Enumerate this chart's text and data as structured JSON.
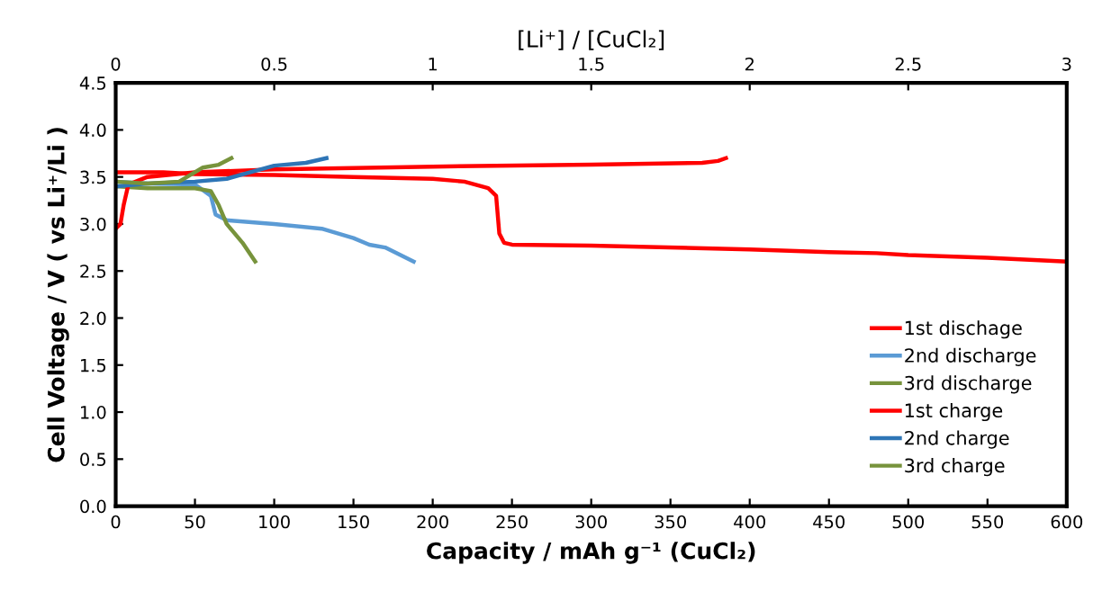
{
  "chart_data": {
    "type": "line",
    "xlabel": "Capacity / mAh g⁻¹ (CuCl₂)",
    "ylabel": "Cell Voltage / V ( vs Li⁺/Li )",
    "x2label": "[Li⁺] / [CuCl₂]",
    "xlim": [
      0,
      600
    ],
    "xticks": [
      0,
      50,
      100,
      150,
      200,
      250,
      300,
      350,
      400,
      450,
      500,
      550,
      600
    ],
    "ylim": [
      0,
      4.5
    ],
    "yticks": [
      {
        "value": 0,
        "label": "0.0"
      },
      {
        "value": 0.5,
        "label": "0.5"
      },
      {
        "value": 1,
        "label": "1.0"
      },
      {
        "value": 1.5,
        "label": "1.5"
      },
      {
        "value": 2,
        "label": "2.0"
      },
      {
        "value": 2.5,
        "label": "2.5"
      },
      {
        "value": 3,
        "label": "3.0"
      },
      {
        "value": 3.5,
        "label": "3.5"
      },
      {
        "value": 4,
        "label": "4.0"
      },
      {
        "value": 4.5,
        "label": "4.5"
      }
    ],
    "x2lim": [
      0,
      3
    ],
    "x2ticks": [
      0,
      0.5,
      1,
      1.5,
      2,
      2.5,
      3
    ],
    "grid": false,
    "legend": "bottom right",
    "marker": "none",
    "line_style": "solid",
    "series": [
      {
        "name": "1st dischage",
        "color": "#ff0000",
        "x": [
          0,
          30,
          50,
          100,
          150,
          200,
          220,
          235,
          240,
          242,
          245,
          250,
          300,
          400,
          450,
          480,
          500,
          550,
          600
        ],
        "values": [
          3.55,
          3.55,
          3.53,
          3.52,
          3.5,
          3.48,
          3.45,
          3.38,
          3.3,
          2.9,
          2.8,
          2.78,
          2.77,
          2.73,
          2.7,
          2.69,
          2.67,
          2.64,
          2.6
        ]
      },
      {
        "name": "2nd discharge",
        "color": "#5b9bd5",
        "x": [
          0,
          20,
          50,
          60,
          63,
          70,
          100,
          130,
          150,
          160,
          170,
          188
        ],
        "values": [
          3.45,
          3.43,
          3.42,
          3.3,
          3.1,
          3.04,
          3.0,
          2.95,
          2.85,
          2.78,
          2.75,
          2.6
        ]
      },
      {
        "name": "3rd discharge",
        "color": "#77933c",
        "x": [
          0,
          20,
          50,
          60,
          65,
          70,
          80,
          88
        ],
        "values": [
          3.4,
          3.38,
          3.38,
          3.35,
          3.2,
          3.0,
          2.8,
          2.6
        ]
      },
      {
        "name": "1st charge",
        "color": "#ff0000",
        "x": [
          0,
          3,
          5,
          8,
          20,
          50,
          100,
          200,
          300,
          370,
          380,
          385
        ],
        "values": [
          2.95,
          3.0,
          3.2,
          3.42,
          3.5,
          3.55,
          3.58,
          3.61,
          3.63,
          3.65,
          3.67,
          3.7
        ]
      },
      {
        "name": "2nd charge",
        "color": "#2e75b6",
        "x": [
          0,
          20,
          50,
          70,
          85,
          100,
          120,
          133
        ],
        "values": [
          3.4,
          3.43,
          3.45,
          3.48,
          3.55,
          3.62,
          3.65,
          3.7
        ]
      },
      {
        "name": "3rd charge",
        "color": "#77933c",
        "x": [
          0,
          20,
          40,
          50,
          55,
          65,
          73
        ],
        "values": [
          3.45,
          3.43,
          3.45,
          3.55,
          3.6,
          3.63,
          3.7
        ]
      }
    ]
  }
}
